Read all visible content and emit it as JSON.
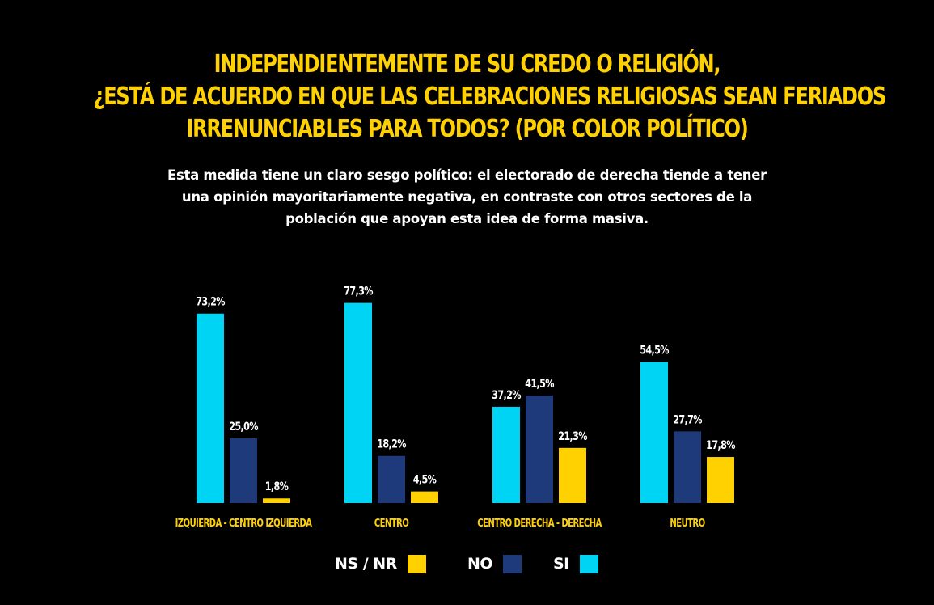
{
  "header": {
    "title_lines": [
      "INDEPENDIENTEMENTE DE SU CREDO O RELIGIÓN,",
      "¿ESTÁ DE ACUERDO EN QUE LAS CELEBRACIONES RELIGIOSAS SEAN FERIADOS",
      "IRRENUNCIABLES PARA TODOS? (POR COLOR POLÍTICO)"
    ],
    "subtitle": "Esta medida tiene un claro sesgo político: el electorado de derecha tiende a tener una opinión mayoritariamente negativa, en contraste con otros sectores de la población que apoyan esta idea de forma masiva."
  },
  "colors": {
    "background": "#000000",
    "title": "#FFD100",
    "si": "#00D4F5",
    "no": "#1F3A7A",
    "nsnr": "#FFD100",
    "text": "#FFFFFF"
  },
  "chart_data": {
    "type": "bar",
    "title": "INDEPENDIENTEMENTE DE SU CREDO O RELIGIÓN, ¿ESTÁ DE ACUERDO EN QUE LAS CELEBRACIONES RELIGIOSAS SEAN FERIADOS IRRENUNCIABLES PARA TODOS? (POR COLOR POLÍTICO)",
    "categories": [
      "IZQUIERDA - CENTRO IZQUIERDA",
      "CENTRO",
      "CENTRO DERECHA - DERECHA",
      "NEUTRO"
    ],
    "series": [
      {
        "name": "SI",
        "key": "si",
        "values": [
          73.2,
          77.3,
          37.2,
          54.5
        ],
        "labels": [
          "73,2%",
          "77,3%",
          "37,2%",
          "54,5%"
        ]
      },
      {
        "name": "NO",
        "key": "no",
        "values": [
          25.0,
          18.2,
          41.5,
          27.7
        ],
        "labels": [
          "25,0%",
          "18,2%",
          "41,5%",
          "27,7%"
        ]
      },
      {
        "name": "NS / NR",
        "key": "nsnr",
        "values": [
          1.8,
          4.5,
          21.3,
          17.8
        ],
        "labels": [
          "1,8%",
          "4,5%",
          "21,3%",
          "17,8%"
        ]
      }
    ],
    "xlabel": "",
    "ylabel": "",
    "ylim": [
      0,
      80
    ],
    "grid": false,
    "legend_position": "bottom-center"
  },
  "legend": [
    {
      "label": "NS / NR",
      "key": "nsnr"
    },
    {
      "label": "NO",
      "key": "no"
    },
    {
      "label": "SI",
      "key": "si"
    }
  ]
}
